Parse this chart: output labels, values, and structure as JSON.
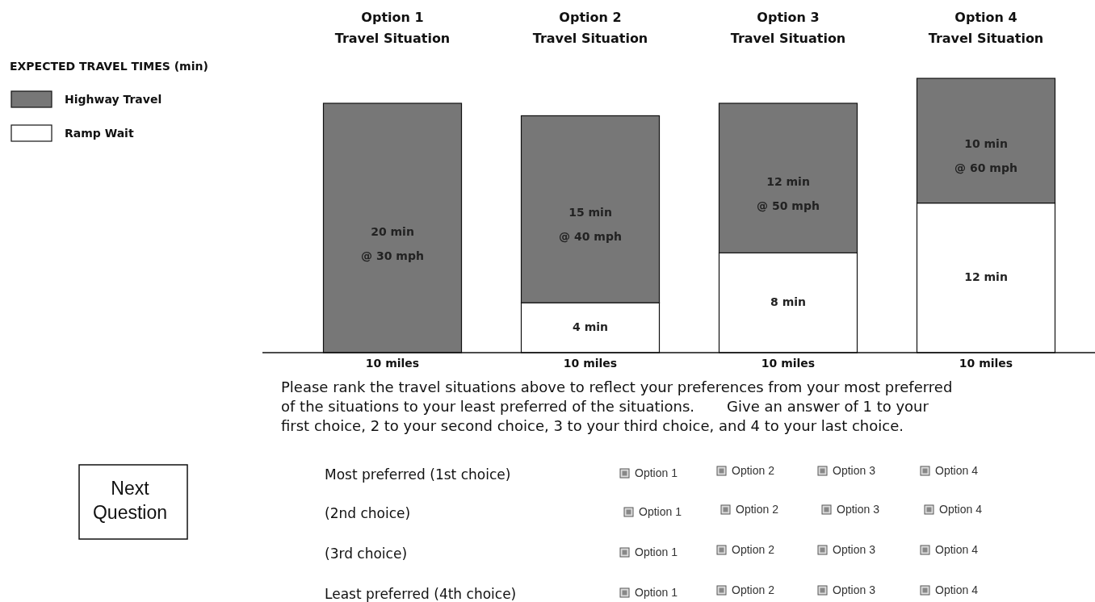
{
  "chart_data": {
    "type": "bar",
    "stacked": true,
    "legend": "top left",
    "legend_title": "EXPECTED TRAVEL TIMES (min)",
    "categories": [
      "Option 1\nTravel Situation",
      "Option 2\nTravel Situation",
      "Option 3\nTravel Situation",
      "Option 4\nTravel Situation"
    ],
    "series": [
      {
        "name": "Ramp Wait",
        "color": "#ffffff",
        "values": [
          0,
          4,
          8,
          12
        ],
        "value_labels": [
          null,
          "4 min",
          "8 min",
          "12 min"
        ]
      },
      {
        "name": "Highway Travel",
        "color": "#777777",
        "values": [
          20,
          15,
          12,
          10
        ],
        "value_labels": [
          "20 min\n@ 30 mph",
          "15 min\n@ 40 mph",
          "12 min\n@ 50 mph",
          "10 min\n@ 60 mph"
        ]
      }
    ],
    "annotations": [
      "10 miles",
      "10 miles",
      "10 miles",
      "10 miles",
      "Please rank the travel situations above to reflect your preferences from your most preferred\nof the situations to your least preferred of the situations.       Give an answer of 1 to your\nfirst choice, 2 to your second choice, 3 to your third choice, and 4 to your last choice.",
      "Most preferred (1st choice)",
      "(2nd choice)",
      "(3rd choice)",
      "Least preferred (4th choice)",
      "Option 1",
      "Option 2",
      "Option 3",
      "Option 4",
      "Next\nQuestion"
    ]
  }
}
